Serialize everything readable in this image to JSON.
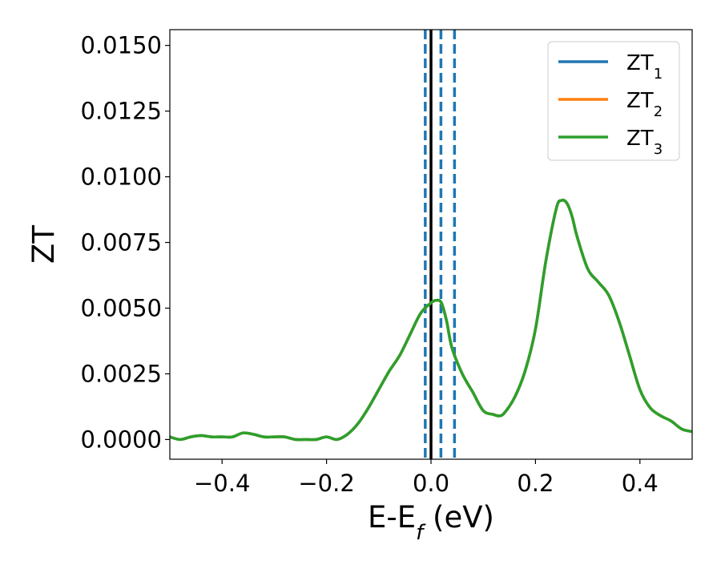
{
  "chart_data": {
    "type": "line",
    "xlabel": "E-E",
    "xlabel_sub": "f",
    "xlabel_unit": " (eV)",
    "ylabel": "ZT",
    "xlim": [
      -0.5,
      0.5
    ],
    "ylim": [
      -0.00075,
      0.0156
    ],
    "xticks": [
      -0.4,
      -0.2,
      0.0,
      0.2,
      0.4
    ],
    "xtick_labels": [
      "−0.4",
      "−0.2",
      "0.0",
      "0.2",
      "0.4"
    ],
    "yticks": [
      0,
      0.0025,
      0.005,
      0.0075,
      0.01,
      0.0125,
      0.015
    ],
    "ytick_labels": [
      "0.0000",
      "0.0025",
      "0.0050",
      "0.0075",
      "0.0100",
      "0.0125",
      "0.0150"
    ],
    "grid": false,
    "legend_position": "top-right",
    "x": [
      -0.5,
      -0.48,
      -0.46,
      -0.44,
      -0.42,
      -0.4,
      -0.38,
      -0.36,
      -0.34,
      -0.32,
      -0.3,
      -0.28,
      -0.26,
      -0.24,
      -0.22,
      -0.2,
      -0.18,
      -0.16,
      -0.14,
      -0.12,
      -0.1,
      -0.08,
      -0.06,
      -0.04,
      -0.02,
      0.0,
      0.01,
      0.02,
      0.03,
      0.04,
      0.06,
      0.08,
      0.1,
      0.12,
      0.13,
      0.14,
      0.16,
      0.18,
      0.2,
      0.22,
      0.24,
      0.25,
      0.26,
      0.27,
      0.28,
      0.3,
      0.32,
      0.34,
      0.36,
      0.38,
      0.4,
      0.42,
      0.44,
      0.46,
      0.48,
      0.5
    ],
    "series": [
      {
        "name": "ZT",
        "sub": "1",
        "color": "#1f77b4",
        "values": [
          0.0001,
          0.0,
          0.0001,
          0.00015,
          0.0001,
          0.0001,
          0.0001,
          0.00025,
          0.0002,
          0.0001,
          0.0001,
          0.0001,
          0.0,
          0.0,
          0.0,
          0.0001,
          0.0,
          0.0002,
          0.0006,
          0.0012,
          0.0019,
          0.0026,
          0.0032,
          0.004,
          0.0048,
          0.0052,
          0.0053,
          0.0052,
          0.0045,
          0.0035,
          0.0025,
          0.0018,
          0.0011,
          0.00095,
          0.0009,
          0.001,
          0.0016,
          0.0026,
          0.0042,
          0.0068,
          0.0088,
          0.0091,
          0.009,
          0.0085,
          0.0077,
          0.0065,
          0.006,
          0.0055,
          0.0045,
          0.0032,
          0.0019,
          0.0012,
          0.0009,
          0.0007,
          0.0004,
          0.0003
        ]
      },
      {
        "name": "ZT",
        "sub": "2",
        "color": "#ff7f0e",
        "values": [
          0.0001,
          0.0,
          0.0001,
          0.00015,
          0.0001,
          0.0001,
          0.0001,
          0.00025,
          0.0002,
          0.0001,
          0.0001,
          0.0001,
          0.0,
          0.0,
          0.0,
          0.0001,
          0.0,
          0.0002,
          0.0006,
          0.0012,
          0.0019,
          0.0026,
          0.0032,
          0.004,
          0.0048,
          0.0052,
          0.0053,
          0.0052,
          0.0045,
          0.0035,
          0.0025,
          0.0018,
          0.0011,
          0.00095,
          0.0009,
          0.001,
          0.0016,
          0.0026,
          0.0042,
          0.0068,
          0.0088,
          0.0091,
          0.009,
          0.0085,
          0.0077,
          0.0065,
          0.006,
          0.0055,
          0.0045,
          0.0032,
          0.0019,
          0.0012,
          0.0009,
          0.0007,
          0.0004,
          0.0003
        ]
      },
      {
        "name": "ZT",
        "sub": "3",
        "color": "#2ca02c",
        "values": [
          0.0001,
          0.0,
          0.0001,
          0.00015,
          0.0001,
          0.0001,
          0.0001,
          0.00025,
          0.0002,
          0.0001,
          0.0001,
          0.0001,
          0.0,
          0.0,
          0.0,
          0.0001,
          0.0,
          0.0002,
          0.0006,
          0.0012,
          0.0019,
          0.0026,
          0.0032,
          0.004,
          0.0048,
          0.0052,
          0.0053,
          0.0052,
          0.0045,
          0.0035,
          0.0025,
          0.0018,
          0.0011,
          0.00095,
          0.0009,
          0.001,
          0.0016,
          0.0026,
          0.0042,
          0.0068,
          0.0088,
          0.0091,
          0.009,
          0.0085,
          0.0077,
          0.0065,
          0.006,
          0.0055,
          0.0045,
          0.0032,
          0.0019,
          0.0012,
          0.0009,
          0.0007,
          0.0004,
          0.0003
        ]
      }
    ],
    "vlines": [
      {
        "x": -0.011,
        "style": "dashed",
        "color": "#1f77b4"
      },
      {
        "x": 0.0,
        "style": "solid",
        "color": "#000000"
      },
      {
        "x": 0.019,
        "style": "dashed",
        "color": "#1f77b4"
      },
      {
        "x": 0.045,
        "style": "dashed",
        "color": "#1f77b4"
      }
    ]
  }
}
